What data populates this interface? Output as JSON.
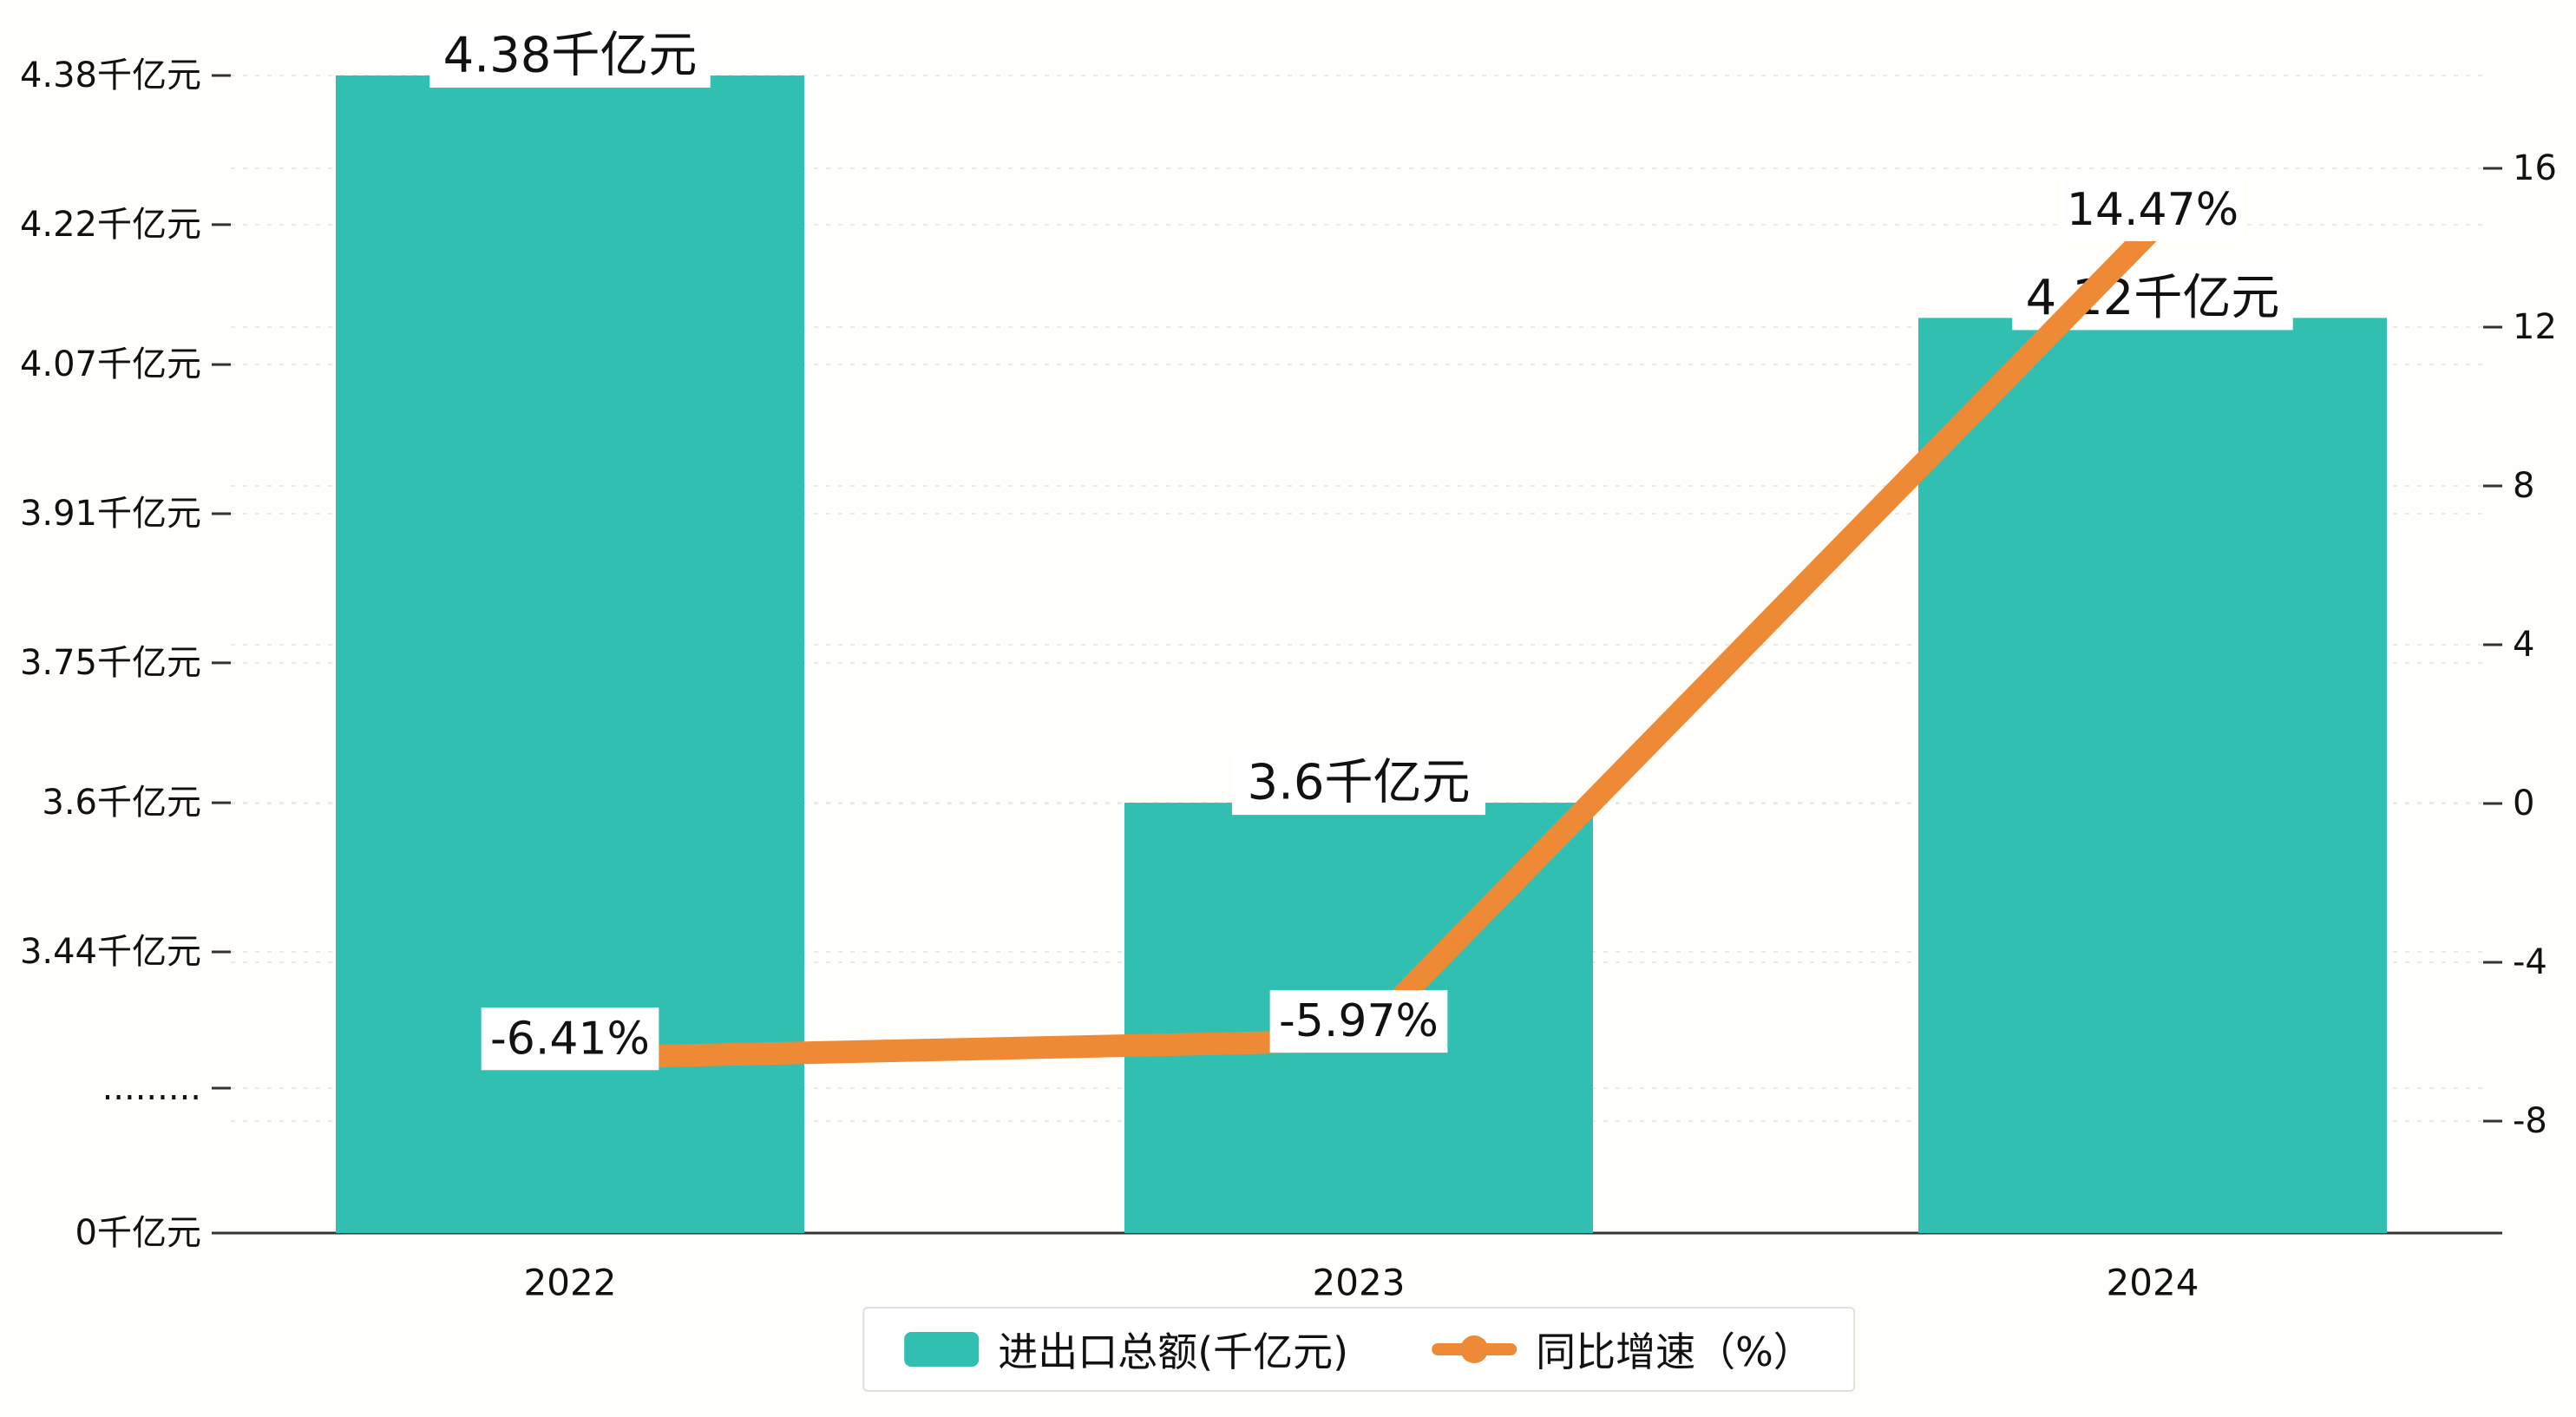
{
  "chart_data": {
    "type": "bar",
    "combo": "bar+line dual-axis",
    "categories": [
      "2022",
      "2023",
      "2024"
    ],
    "series": [
      {
        "name": "进出口总额(千亿元)",
        "type": "bar",
        "yaxis": "left",
        "values": [
          4.38,
          3.6,
          4.12
        ],
        "data_labels": [
          "4.38千亿元",
          "3.6千亿元",
          "4.12千亿元"
        ],
        "color": "#31bfb2"
      },
      {
        "name": "同比增速（%）",
        "type": "line",
        "yaxis": "right",
        "values": [
          -6.41,
          -5.97,
          14.47
        ],
        "data_labels": [
          "-6.41%",
          "-5.97%",
          "14.47%"
        ],
        "color": "#ee8a35"
      }
    ],
    "left_axis": {
      "broken": true,
      "tick_labels": [
        "4.38千亿元",
        "4.22千亿元",
        "4.07千亿元",
        "3.91千亿元",
        "3.75千亿元",
        "3.6千亿元",
        "3.44千亿元",
        ".........",
        "0千亿元"
      ],
      "tick_values": [
        4.38,
        4.22,
        4.07,
        3.91,
        3.75,
        3.6,
        3.44,
        null,
        0
      ]
    },
    "right_axis": {
      "tick_labels": [
        "16",
        "12",
        "8",
        "4",
        "0",
        "-4",
        "-8"
      ],
      "tick_values": [
        16,
        12,
        8,
        4,
        0,
        -4,
        -8
      ],
      "range": [
        -8,
        16
      ]
    },
    "legend": {
      "position": "bottom-center",
      "items": [
        {
          "label": "进出口总额(千亿元)",
          "marker": "bar-swatch",
          "color": "#31bfb2"
        },
        {
          "label": "同比增速（%）",
          "marker": "line-dot",
          "color": "#ee8a35"
        }
      ]
    },
    "grid": "dashed-horizontal",
    "background": "#fffefb",
    "text_color": "#111111"
  }
}
